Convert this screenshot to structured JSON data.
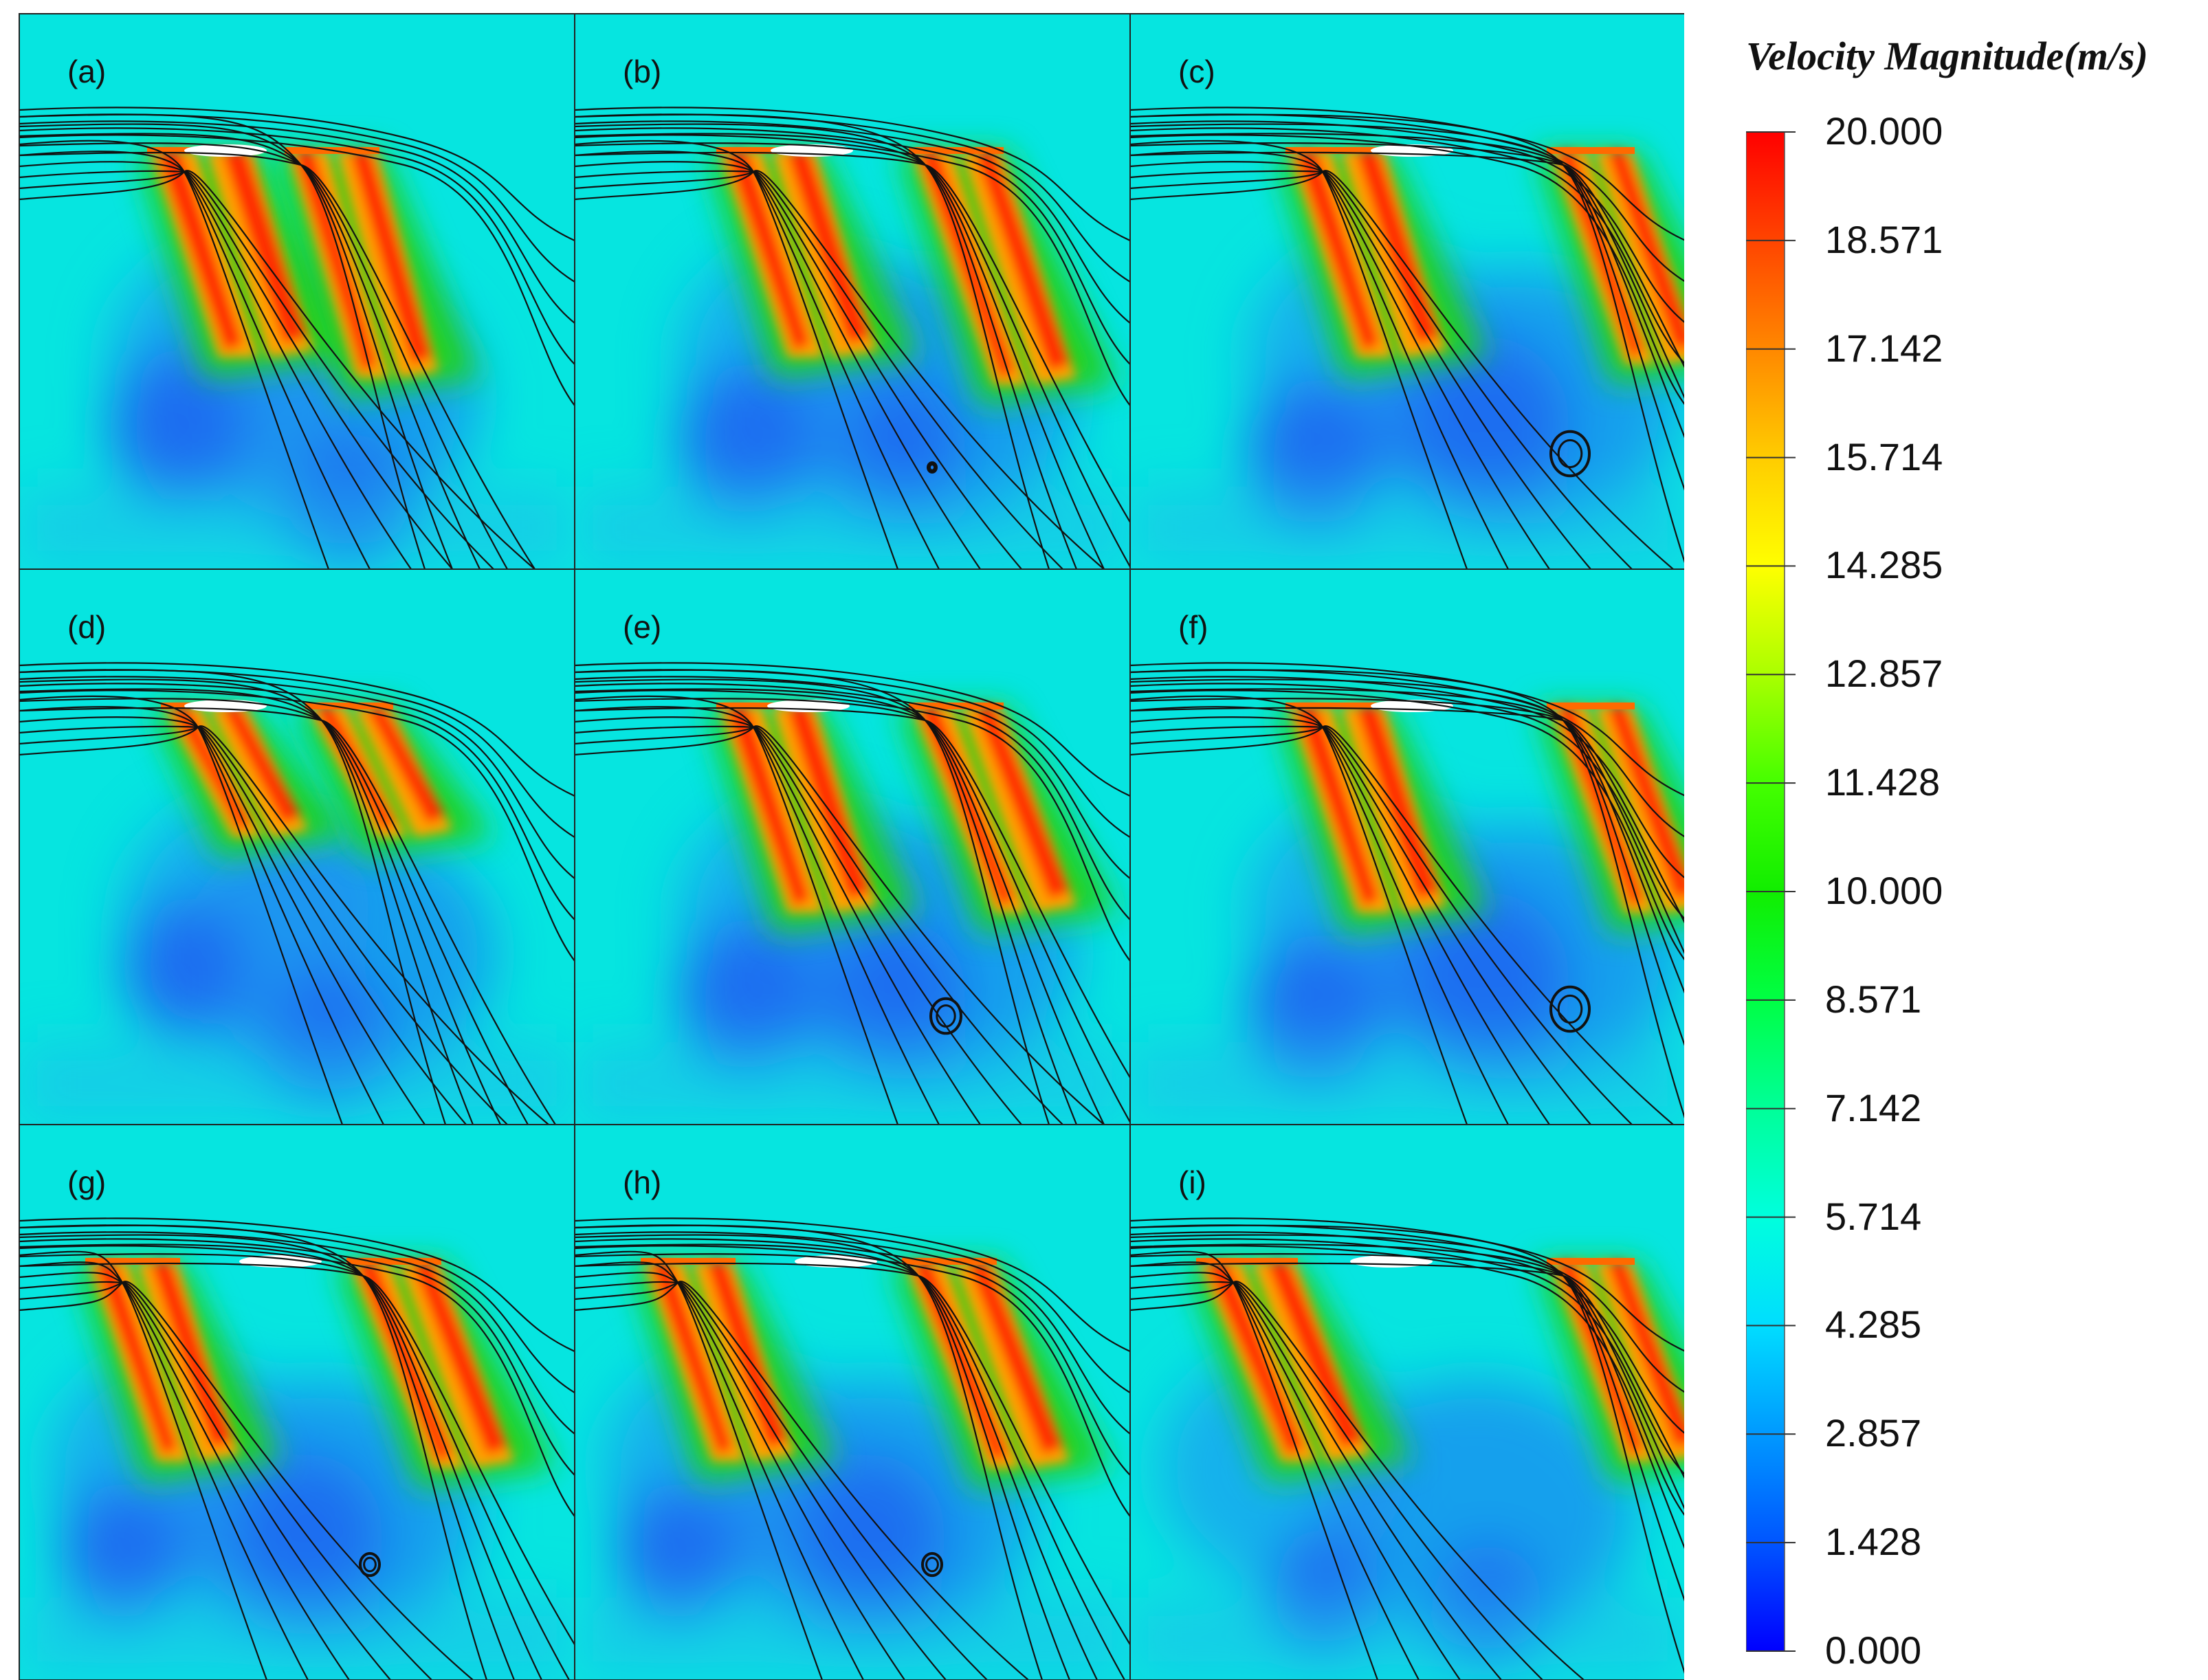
{
  "panels": [
    {
      "label": "(a)",
      "case": "a"
    },
    {
      "label": "(b)",
      "case": "b"
    },
    {
      "label": "(c)",
      "case": "c"
    },
    {
      "label": "(d)",
      "case": "d"
    },
    {
      "label": "(e)",
      "case": "e"
    },
    {
      "label": "(f)",
      "case": "f"
    },
    {
      "label": "(g)",
      "case": "g"
    },
    {
      "label": "(h)",
      "case": "h"
    },
    {
      "label": "(i)",
      "case": "i"
    }
  ],
  "legend": {
    "title": "Velocity Magnitude(m/s)",
    "ticks": [
      "20.000",
      "18.571",
      "17.142",
      "15.714",
      "14.285",
      "12.857",
      "11.428",
      "10.000",
      "8.571",
      "7.142",
      "5.714",
      "4.285",
      "2.857",
      "1.428",
      "0.000"
    ],
    "colors": [
      "#0000ff",
      "#0055ff",
      "#0099ff",
      "#00ddff",
      "#00ffdd",
      "#00ff99",
      "#00ff44",
      "#11ee00",
      "#44ff00",
      "#aaff00",
      "#ffff00",
      "#ffcc00",
      "#ff8800",
      "#ff4400",
      "#ff0000"
    ]
  },
  "colors": {
    "background_flow": "#06e5e0",
    "jet_core": "#ff2a00",
    "jet_edge": "#22d21c",
    "wake_low": "#1a6cf0",
    "streamline": "#111111"
  }
}
